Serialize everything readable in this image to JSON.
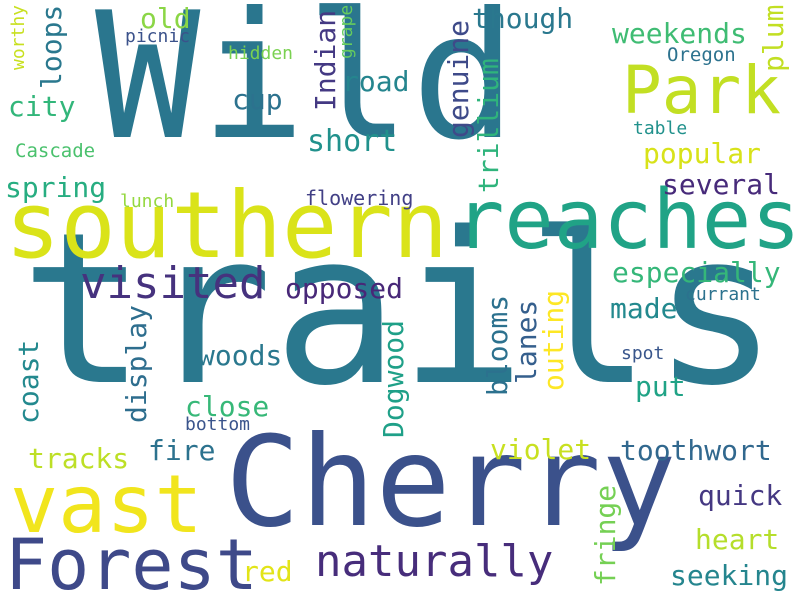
{
  "word_cloud": {
    "background": "#ffffff",
    "words": [
      {
        "text": "Wild",
        "color": "#2a768e",
        "orientation": "horizontal"
      },
      {
        "text": "trails",
        "color": "#2a788e",
        "orientation": "horizontal"
      },
      {
        "text": "Cherry",
        "color": "#3b518b",
        "orientation": "horizontal"
      },
      {
        "text": "southern",
        "color": "#dae319",
        "orientation": "horizontal"
      },
      {
        "text": "reaches",
        "color": "#20a386",
        "orientation": "horizontal"
      },
      {
        "text": "Park",
        "color": "#c2df23",
        "orientation": "horizontal"
      },
      {
        "text": "vast",
        "color": "#f1e51d",
        "orientation": "horizontal"
      },
      {
        "text": "Forest",
        "color": "#3e4989",
        "orientation": "horizontal"
      },
      {
        "text": "visited",
        "color": "#46327e",
        "orientation": "horizontal"
      },
      {
        "text": "naturally",
        "color": "#472d7b",
        "orientation": "horizontal"
      },
      {
        "text": "old",
        "color": "#8bd646",
        "orientation": "horizontal"
      },
      {
        "text": "loops",
        "color": "#2a788e",
        "orientation": "vertical"
      },
      {
        "text": "picnic",
        "color": "#3b528b",
        "orientation": "horizontal"
      },
      {
        "text": "worthy",
        "color": "#c8e020",
        "orientation": "vertical"
      },
      {
        "text": "hidden",
        "color": "#7ad151",
        "orientation": "horizontal"
      },
      {
        "text": "grape",
        "color": "#65cb5e",
        "orientation": "vertical"
      },
      {
        "text": "Indian",
        "color": "#443983",
        "orientation": "vertical"
      },
      {
        "text": "genuine",
        "color": "#3e4a89",
        "orientation": "vertical"
      },
      {
        "text": "though",
        "color": "#2a788e",
        "orientation": "horizontal"
      },
      {
        "text": "weekends",
        "color": "#3fbc73",
        "orientation": "horizontal"
      },
      {
        "text": "plum",
        "color": "#c2df23",
        "orientation": "vertical"
      },
      {
        "text": "Oregon",
        "color": "#2c728e",
        "orientation": "horizontal"
      },
      {
        "text": "road",
        "color": "#25858e",
        "orientation": "horizontal"
      },
      {
        "text": "city",
        "color": "#32b67a",
        "orientation": "horizontal"
      },
      {
        "text": "cup",
        "color": "#2c728e",
        "orientation": "horizontal"
      },
      {
        "text": "trillium",
        "color": "#2fb47c",
        "orientation": "vertical"
      },
      {
        "text": "table",
        "color": "#21918c",
        "orientation": "horizontal"
      },
      {
        "text": "Cascade",
        "color": "#4ac16d",
        "orientation": "horizontal"
      },
      {
        "text": "short",
        "color": "#21918c",
        "orientation": "horizontal"
      },
      {
        "text": "popular",
        "color": "#d8e219",
        "orientation": "horizontal"
      },
      {
        "text": "spring",
        "color": "#27ad81",
        "orientation": "horizontal"
      },
      {
        "text": "lunch",
        "color": "#95d840",
        "orientation": "horizontal"
      },
      {
        "text": "flowering",
        "color": "#424086",
        "orientation": "horizontal"
      },
      {
        "text": "several",
        "color": "#472a7a",
        "orientation": "horizontal"
      },
      {
        "text": "especially",
        "color": "#35b779",
        "orientation": "horizontal"
      },
      {
        "text": "opposed",
        "color": "#482878",
        "orientation": "horizontal"
      },
      {
        "text": "currant",
        "color": "#2c728e",
        "orientation": "horizontal"
      },
      {
        "text": "made",
        "color": "#23898e",
        "orientation": "horizontal"
      },
      {
        "text": "display",
        "color": "#2e6e8e",
        "orientation": "vertical"
      },
      {
        "text": "coast",
        "color": "#23898e",
        "orientation": "vertical"
      },
      {
        "text": "woods",
        "color": "#2a788e",
        "orientation": "horizontal"
      },
      {
        "text": "blooms",
        "color": "#2c718e",
        "orientation": "vertical"
      },
      {
        "text": "lanes",
        "color": "#355f8d",
        "orientation": "vertical"
      },
      {
        "text": "outing",
        "color": "#fde725",
        "orientation": "vertical"
      },
      {
        "text": "Dogwood",
        "color": "#1fa088",
        "orientation": "vertical"
      },
      {
        "text": "spot",
        "color": "#39568c",
        "orientation": "horizontal"
      },
      {
        "text": "put",
        "color": "#20a386",
        "orientation": "horizontal"
      },
      {
        "text": "close",
        "color": "#37b878",
        "orientation": "horizontal"
      },
      {
        "text": "bottom",
        "color": "#3a548c",
        "orientation": "horizontal"
      },
      {
        "text": "fire",
        "color": "#2c728e",
        "orientation": "horizontal"
      },
      {
        "text": "tracks",
        "color": "#bddf26",
        "orientation": "horizontal"
      },
      {
        "text": "violet",
        "color": "#c8e020",
        "orientation": "horizontal"
      },
      {
        "text": "toothwort",
        "color": "#31688e",
        "orientation": "horizontal"
      },
      {
        "text": "quick",
        "color": "#453882",
        "orientation": "horizontal"
      },
      {
        "text": "fringe",
        "color": "#75d054",
        "orientation": "vertical"
      },
      {
        "text": "heart",
        "color": "#b5de2b",
        "orientation": "horizontal"
      },
      {
        "text": "red",
        "color": "#e2e418",
        "orientation": "horizontal"
      },
      {
        "text": "seeking",
        "color": "#25858e",
        "orientation": "horizontal"
      }
    ]
  }
}
